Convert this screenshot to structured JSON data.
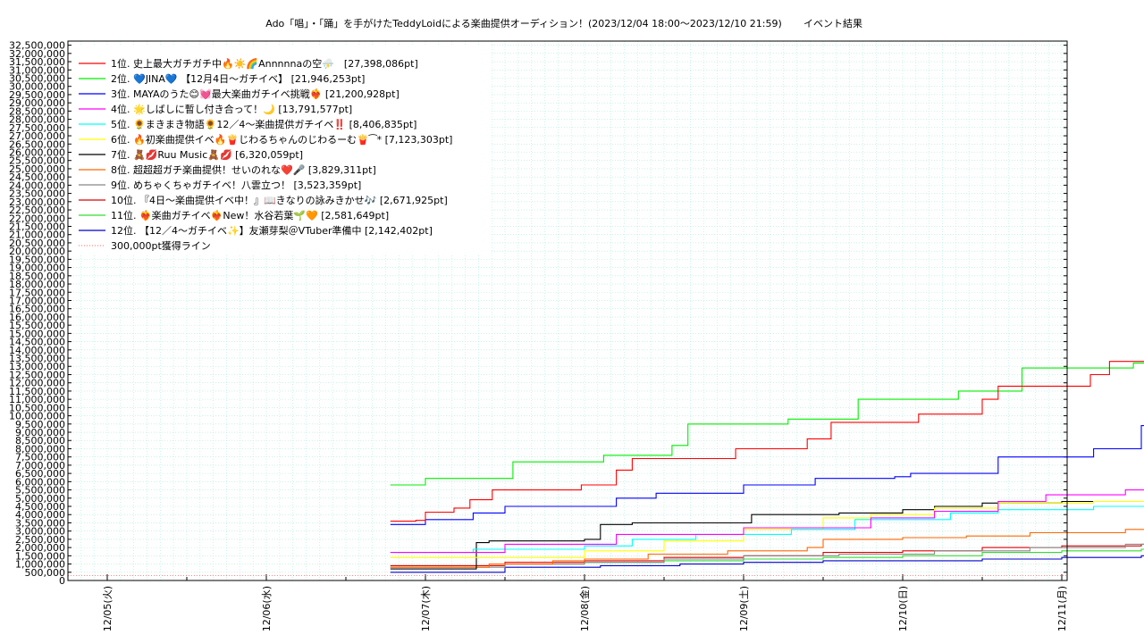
{
  "chart_data": {
    "type": "line",
    "title": "Ado「唱」・「踊」を手がけたTeddyLoidによる楽曲提供オーディション！(2023/12/04 18:00〜2023/12/10 21:59)",
    "subtitle": "イベント結果",
    "xlabel": "",
    "ylabel": "",
    "x_ticks": [
      "12/05(火)",
      "12/06(水)",
      "12/07(木)",
      "12/08(金)",
      "12/09(土)",
      "12/10(日)",
      "12/11(月)"
    ],
    "x_range_days": [
      0,
      6
    ],
    "ylim": [
      0,
      32750000
    ],
    "y_tick_step": 500000,
    "y_ticks": [
      "0",
      "500,000",
      "1,000,000",
      "1,500,000",
      "2,000,000",
      "2,500,000",
      "3,000,000",
      "3,500,000",
      "4,000,000",
      "4,500,000",
      "5,000,000",
      "5,500,000",
      "6,000,000",
      "6,500,000",
      "7,000,000",
      "7,500,000",
      "8,000,000",
      "8,500,000",
      "9,000,000",
      "9,500,000",
      "10,000,000",
      "10,500,000",
      "11,000,000",
      "11,500,000",
      "12,000,000",
      "12,500,000",
      "13,000,000",
      "13,500,000",
      "14,000,000",
      "14,500,000",
      "15,000,000",
      "15,500,000",
      "16,000,000",
      "16,500,000",
      "17,000,000",
      "17,500,000",
      "18,000,000",
      "18,500,000",
      "19,000,000",
      "19,500,000",
      "20,000,000",
      "20,500,000",
      "21,000,000",
      "21,500,000",
      "22,000,000",
      "22,500,000",
      "23,000,000",
      "23,500,000",
      "24,000,000",
      "24,500,000",
      "25,000,000",
      "25,500,000",
      "26,000,000",
      "26,500,000",
      "27,000,000",
      "27,500,000",
      "28,000,000",
      "28,500,000",
      "29,000,000",
      "29,500,000",
      "30,000,000",
      "30,500,000",
      "31,000,000",
      "31,500,000",
      "32,000,000",
      "32,500,000"
    ],
    "grid": true,
    "legend_position": "top-left",
    "series": [
      {
        "name": " 1位. 史上最大ガチガチ中🔥☀️🌈Annnnnaの空⛈️　[27,398,086pt]",
        "color": "#ff0000",
        "points": [
          [
            1.78,
            3600000
          ],
          [
            1.94,
            3650000
          ],
          [
            2.0,
            4150000
          ],
          [
            2.18,
            4400000
          ],
          [
            2.28,
            4900000
          ],
          [
            2.42,
            5500000
          ],
          [
            2.98,
            5800000
          ],
          [
            3.2,
            6700000
          ],
          [
            3.3,
            7400000
          ],
          [
            3.9,
            7400000
          ],
          [
            3.95,
            8000000
          ],
          [
            4.15,
            8000000
          ],
          [
            4.4,
            8600000
          ],
          [
            4.55,
            9600000
          ],
          [
            5.0,
            9600000
          ],
          [
            5.1,
            10100000
          ],
          [
            5.37,
            10100000
          ],
          [
            5.5,
            11000000
          ],
          [
            5.6,
            11800000
          ],
          [
            6.08,
            11800000
          ],
          [
            6.18,
            12500000
          ],
          [
            6.3,
            13300000
          ],
          [
            6.58,
            13300000
          ],
          [
            6.66,
            14000000
          ],
          [
            6.87,
            15700000
          ],
          [
            6.93,
            27398086
          ],
          [
            7.0,
            27398086
          ]
        ]
      },
      {
        "name": " 2位. 💙JINA💙 【12月4日〜ガチイベ】 [21,946,253pt]",
        "color": "#00ee00",
        "points": [
          [
            1.78,
            5800000
          ],
          [
            1.95,
            5800000
          ],
          [
            2.0,
            6200000
          ],
          [
            2.3,
            6200000
          ],
          [
            2.55,
            7200000
          ],
          [
            3.0,
            7200000
          ],
          [
            3.12,
            7600000
          ],
          [
            3.45,
            7600000
          ],
          [
            3.55,
            8200000
          ],
          [
            3.65,
            9500000
          ],
          [
            4.12,
            9500000
          ],
          [
            4.28,
            9800000
          ],
          [
            4.6,
            9800000
          ],
          [
            4.72,
            11000000
          ],
          [
            5.2,
            11000000
          ],
          [
            5.35,
            11500000
          ],
          [
            5.6,
            11500000
          ],
          [
            5.75,
            12900000
          ],
          [
            6.3,
            12900000
          ],
          [
            6.45,
            13200000
          ],
          [
            6.8,
            13300000
          ],
          [
            6.87,
            16000000
          ],
          [
            6.93,
            21946253
          ],
          [
            7.0,
            21946253
          ]
        ]
      },
      {
        "name": " 3位. MAYAのうた😊💓最大楽曲ガチイベ挑戦❤️‍🔥 [21,200,928pt]",
        "color": "#0000ff",
        "points": [
          [
            1.78,
            3400000
          ],
          [
            1.92,
            3400000
          ],
          [
            2.0,
            3700000
          ],
          [
            2.2,
            3700000
          ],
          [
            2.3,
            4100000
          ],
          [
            2.5,
            4500000
          ],
          [
            3.0,
            4500000
          ],
          [
            3.2,
            5000000
          ],
          [
            3.45,
            5300000
          ],
          [
            3.9,
            5300000
          ],
          [
            4.0,
            5800000
          ],
          [
            4.3,
            5800000
          ],
          [
            4.45,
            6200000
          ],
          [
            4.95,
            6300000
          ],
          [
            5.05,
            6500000
          ],
          [
            5.4,
            6500000
          ],
          [
            5.6,
            7500000
          ],
          [
            6.1,
            7500000
          ],
          [
            6.2,
            8000000
          ],
          [
            6.5,
            9400000
          ],
          [
            6.72,
            9400000
          ],
          [
            6.82,
            10100000
          ],
          [
            6.9,
            14000000
          ],
          [
            6.93,
            21200928
          ],
          [
            7.0,
            21200928
          ]
        ]
      },
      {
        "name": " 4位. 🌟しばしに暫し付き合って！🌙 [13,791,577pt]",
        "color": "#ff00ff",
        "points": [
          [
            1.78,
            1700000
          ],
          [
            2.2,
            1700000
          ],
          [
            2.5,
            2200000
          ],
          [
            3.0,
            2200000
          ],
          [
            3.2,
            2800000
          ],
          [
            4.0,
            3200000
          ],
          [
            4.8,
            3800000
          ],
          [
            5.2,
            4200000
          ],
          [
            5.6,
            4800000
          ],
          [
            5.9,
            5200000
          ],
          [
            6.4,
            5500000
          ],
          [
            6.85,
            5800000
          ],
          [
            6.93,
            13791577
          ],
          [
            7.0,
            13791577
          ]
        ]
      },
      {
        "name": " 5位. 🌻まきまき物語🌻12／4〜楽曲提供ガチイベ‼️ [8,406,835pt]",
        "color": "#00ffff",
        "points": [
          [
            1.78,
            1700000
          ],
          [
            2.3,
            1900000
          ],
          [
            3.0,
            2100000
          ],
          [
            3.3,
            2500000
          ],
          [
            3.7,
            2800000
          ],
          [
            4.3,
            3100000
          ],
          [
            4.7,
            3700000
          ],
          [
            5.3,
            4100000
          ],
          [
            5.6,
            4300000
          ],
          [
            6.2,
            4500000
          ],
          [
            6.85,
            4600000
          ],
          [
            6.93,
            8406835
          ],
          [
            7.0,
            8406835
          ]
        ]
      },
      {
        "name": " 6位. 🔥初楽曲提供イベ🔥🍟じわるちゃんのじわるーむ🍟⁀* [7,123,303pt]",
        "color": "#ffff00",
        "points": [
          [
            1.78,
            1400000
          ],
          [
            2.5,
            1400000
          ],
          [
            3.0,
            1800000
          ],
          [
            3.5,
            2400000
          ],
          [
            4.0,
            3100000
          ],
          [
            4.5,
            3800000
          ],
          [
            4.8,
            4000000
          ],
          [
            5.2,
            4400000
          ],
          [
            5.6,
            4700000
          ],
          [
            6.2,
            4800000
          ],
          [
            6.85,
            5000000
          ],
          [
            6.93,
            7123303
          ],
          [
            7.0,
            7123303
          ]
        ]
      },
      {
        "name": " 7位. 🧸💋Ruu Music🧸💋 [6,320,059pt]",
        "color": "#000000",
        "points": [
          [
            1.78,
            700000
          ],
          [
            2.3,
            700000
          ],
          [
            2.32,
            2300000
          ],
          [
            2.4,
            2400000
          ],
          [
            3.0,
            2500000
          ],
          [
            3.1,
            3400000
          ],
          [
            3.3,
            3500000
          ],
          [
            4.0,
            3500000
          ],
          [
            4.05,
            4000000
          ],
          [
            4.6,
            4100000
          ],
          [
            5.0,
            4300000
          ],
          [
            5.2,
            4500000
          ],
          [
            5.5,
            4700000
          ],
          [
            6.0,
            4800000
          ],
          [
            6.6,
            4900000
          ],
          [
            6.88,
            5000000
          ],
          [
            6.95,
            6320059
          ],
          [
            7.0,
            6320059
          ]
        ]
      },
      {
        "name": " 8位. 超超超ガチ楽曲提供！せいのれな❤️🎤 [3,829,311pt]",
        "color": "#ff6600",
        "points": [
          [
            1.78,
            800000
          ],
          [
            2.4,
            1000000
          ],
          [
            2.8,
            1200000
          ],
          [
            3.0,
            1300000
          ],
          [
            3.4,
            1600000
          ],
          [
            3.9,
            1800000
          ],
          [
            4.4,
            2000000
          ],
          [
            4.5,
            2500000
          ],
          [
            5.0,
            2600000
          ],
          [
            5.4,
            2700000
          ],
          [
            5.8,
            2900000
          ],
          [
            6.4,
            3100000
          ],
          [
            6.85,
            3300000
          ],
          [
            6.93,
            3829311
          ],
          [
            7.0,
            3829311
          ]
        ]
      },
      {
        "name": " 9位. めちゃくちゃガチイベ！八雲立つ！ [3,523,359pt]",
        "color": "#888888",
        "points": [
          [
            1.78,
            800000
          ],
          [
            2.5,
            1000000
          ],
          [
            3.0,
            1100000
          ],
          [
            3.5,
            1300000
          ],
          [
            4.0,
            1500000
          ],
          [
            4.6,
            1600000
          ],
          [
            5.2,
            1800000
          ],
          [
            5.8,
            2000000
          ],
          [
            6.4,
            2200000
          ],
          [
            6.85,
            2400000
          ],
          [
            6.93,
            3523359
          ],
          [
            7.0,
            3523359
          ]
        ]
      },
      {
        "name": "10位. 『4日〜楽曲提供イベ中！』📖きなりの詠みきかせ🎶 [2,671,925pt]",
        "color": "#dd0000",
        "points": [
          [
            1.78,
            900000
          ],
          [
            2.3,
            900000
          ],
          [
            2.5,
            1100000
          ],
          [
            3.0,
            1200000
          ],
          [
            3.5,
            1400000
          ],
          [
            4.0,
            1500000
          ],
          [
            4.5,
            1700000
          ],
          [
            5.0,
            1800000
          ],
          [
            5.5,
            2000000
          ],
          [
            6.0,
            2100000
          ],
          [
            6.5,
            2200000
          ],
          [
            6.85,
            2300000
          ],
          [
            6.93,
            2671925
          ],
          [
            7.0,
            2671925
          ]
        ]
      },
      {
        "name": "11位. ❤️‍🔥楽曲ガチイベ❤️‍🔥New！水谷若葉🌱🧡 [2,581,649pt]",
        "color": "#33dd33",
        "points": [
          [
            1.78,
            900000
          ],
          [
            2.5,
            1000000
          ],
          [
            3.0,
            1100000
          ],
          [
            3.5,
            1200000
          ],
          [
            4.0,
            1300000
          ],
          [
            4.5,
            1400000
          ],
          [
            5.0,
            1500000
          ],
          [
            5.5,
            1700000
          ],
          [
            6.0,
            1800000
          ],
          [
            6.5,
            1900000
          ],
          [
            6.85,
            2000000
          ],
          [
            6.93,
            2581649
          ],
          [
            7.0,
            2581649
          ]
        ]
      },
      {
        "name": "12位. 【12／4〜ガチイベ✨】友瀬芽梨＠VTuber準備中 [2,142,402pt]",
        "color": "#0000cc",
        "points": [
          [
            1.78,
            500000
          ],
          [
            2.3,
            500000
          ],
          [
            2.5,
            800000
          ],
          [
            3.0,
            800000
          ],
          [
            3.1,
            900000
          ],
          [
            3.6,
            1000000
          ],
          [
            4.0,
            1100000
          ],
          [
            4.5,
            1200000
          ],
          [
            5.0,
            1200000
          ],
          [
            5.5,
            1300000
          ],
          [
            6.0,
            1400000
          ],
          [
            6.5,
            1500000
          ],
          [
            6.85,
            1500000
          ],
          [
            6.93,
            2142402
          ],
          [
            7.0,
            2142402
          ]
        ]
      }
    ],
    "reference_line": {
      "name": "300,000pt獲得ライン",
      "value": 300000,
      "color": "#ff8888"
    }
  }
}
